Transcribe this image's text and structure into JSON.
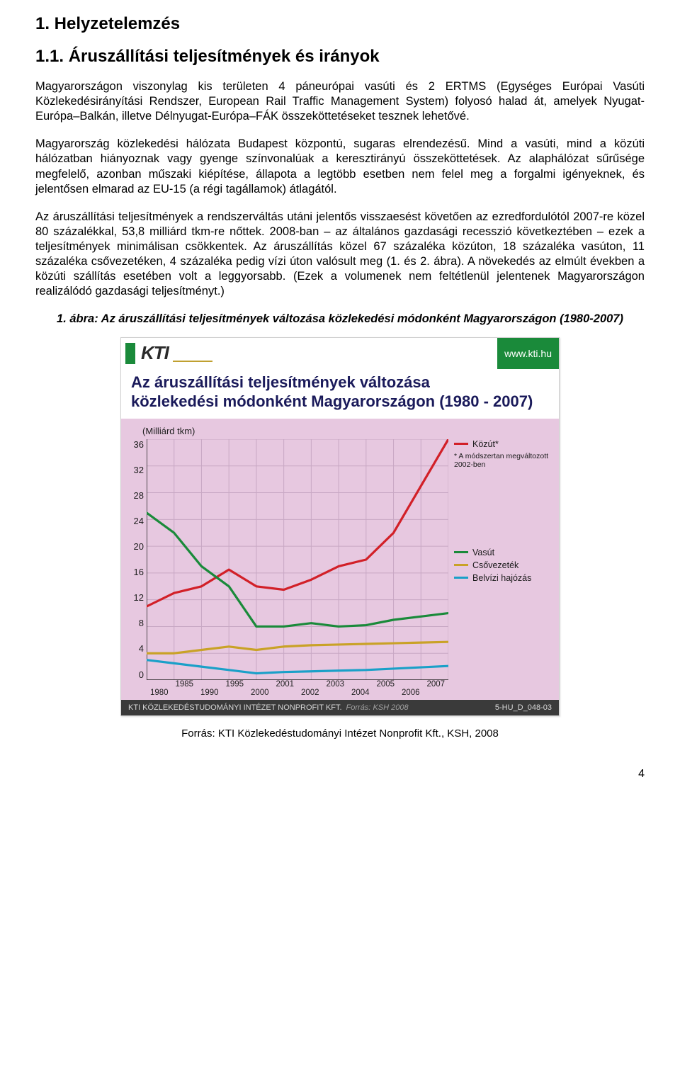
{
  "heading1": "1. Helyzetelemzés",
  "heading2": "1.1. Áruszállítási teljesítmények és irányok",
  "para1": "Magyarországon viszonylag kis területen 4 páneurópai vasúti és 2 ERTMS (Egységes Európai Vasúti Közlekedésirányítási Rendszer, European Rail Traffic Management System) folyosó halad át, amelyek Nyugat-Európa–Balkán, illetve Délnyugat-Európa–FÁK összeköttetéseket tesznek lehetővé.",
  "para2": "Magyarország közlekedési hálózata Budapest központú, sugaras elrendezésű. Mind a vasúti, mind a közúti hálózatban hiányoznak vagy gyenge színvonalúak a keresztirányú összeköttetések. Az alaphálózat sűrűsége megfelelő, azonban műszaki kiépítése, állapota a legtöbb esetben nem felel meg a forgalmi igényeknek, és jelentősen elmarad az EU-15 (a régi tagállamok) átlagától.",
  "para3": "Az áruszállítási teljesítmények a rendszerváltás utáni jelentős visszaesést követően az ezredfordulótól 2007-re közel 80 százalékkal, 53,8 milliárd tkm-re nőttek. 2008-ban – az általános gazdasági recesszió következtében – ezek a teljesítmények minimálisan csökkentek. Az áruszállítás közel 67 százaléka közúton, 18 százaléka vasúton, 11 százaléka csővezetéken, 4 százaléka pedig vízi úton valósult meg (1. és 2. ábra). A növekedés az elmúlt években a közúti szállítás esetében volt a leggyorsabb. (Ezek a volumenek nem feltétlenül jelentenek Magyarországon realizálódó gazdasági teljesítményt.)",
  "figure_caption": "1. ábra: Az áruszállítási teljesítmények változása közlekedési módonként Magyarországon (1980-2007)",
  "chart": {
    "type": "line",
    "brand": "KTI",
    "brand_url": "www.kti.hu",
    "title_line1": "Az áruszállítási teljesítmények változása",
    "title_line2": "közlekedési módonként Magyarországon (1980 - 2007)",
    "y_unit": "(Milliárd tkm)",
    "ylim": [
      0,
      36
    ],
    "yticks": [
      36,
      32,
      28,
      24,
      20,
      16,
      12,
      8,
      4,
      0
    ],
    "x_top": [
      "1985",
      "1995",
      "2001",
      "2003",
      "2005",
      "2007"
    ],
    "x_bottom": [
      "1980",
      "1990",
      "2000",
      "2002",
      "2004",
      "2006"
    ],
    "background_color": "#e7c8e0",
    "grid_color": "#c8a8c4",
    "series": {
      "kozut": {
        "label": "Közút*",
        "color": "#d22028",
        "width": 3.2,
        "points": [
          [
            0,
            11
          ],
          [
            1,
            13
          ],
          [
            2,
            14
          ],
          [
            3,
            16.5
          ],
          [
            4,
            14
          ],
          [
            5,
            13.5
          ],
          [
            6,
            15
          ],
          [
            7,
            17
          ],
          [
            8,
            18
          ],
          [
            9,
            22
          ],
          [
            10,
            29
          ],
          [
            11,
            36
          ]
        ]
      },
      "vasut": {
        "label": "Vasút",
        "color": "#1a8a3a",
        "width": 3.2,
        "points": [
          [
            0,
            25
          ],
          [
            1,
            22
          ],
          [
            2,
            17
          ],
          [
            3,
            14
          ],
          [
            4,
            8
          ],
          [
            5,
            8
          ],
          [
            6,
            8.5
          ],
          [
            7,
            8
          ],
          [
            8,
            8.2
          ],
          [
            9,
            9
          ],
          [
            10,
            9.5
          ],
          [
            11,
            10
          ]
        ]
      },
      "csovez": {
        "label": "Csővezeték",
        "color": "#c9a227",
        "width": 3.2,
        "points": [
          [
            0,
            4
          ],
          [
            1,
            4
          ],
          [
            2,
            4.5
          ],
          [
            3,
            5
          ],
          [
            4,
            4.5
          ],
          [
            5,
            5
          ],
          [
            6,
            5.2
          ],
          [
            7,
            5.3
          ],
          [
            8,
            5.4
          ],
          [
            9,
            5.5
          ],
          [
            10,
            5.6
          ],
          [
            11,
            5.7
          ]
        ]
      },
      "belvizi": {
        "label": "Belvízi hajózás",
        "color": "#1aa0c8",
        "width": 3.2,
        "points": [
          [
            0,
            3
          ],
          [
            1,
            2.5
          ],
          [
            2,
            2
          ],
          [
            3,
            1.5
          ],
          [
            4,
            1
          ],
          [
            5,
            1.2
          ],
          [
            6,
            1.3
          ],
          [
            7,
            1.4
          ],
          [
            8,
            1.5
          ],
          [
            9,
            1.7
          ],
          [
            10,
            1.9
          ],
          [
            11,
            2.1
          ]
        ]
      }
    },
    "legend_order": [
      "kozut",
      "vasut",
      "csovez",
      "belvizi"
    ],
    "legend_note": "* A módszertan megváltozott 2002-ben",
    "footer_left": "KTI KÖZLEKEDÉSTUDOMÁNYI INTÉZET NONPROFIT KFT.",
    "footer_src_label": "Forrás:",
    "footer_src": "KSH 2008",
    "footer_right": "5-HU_D_048-03"
  },
  "source_line": "Forrás: KTI Közlekedéstudományi Intézet Nonprofit Kft., KSH, 2008",
  "page_number": "4"
}
